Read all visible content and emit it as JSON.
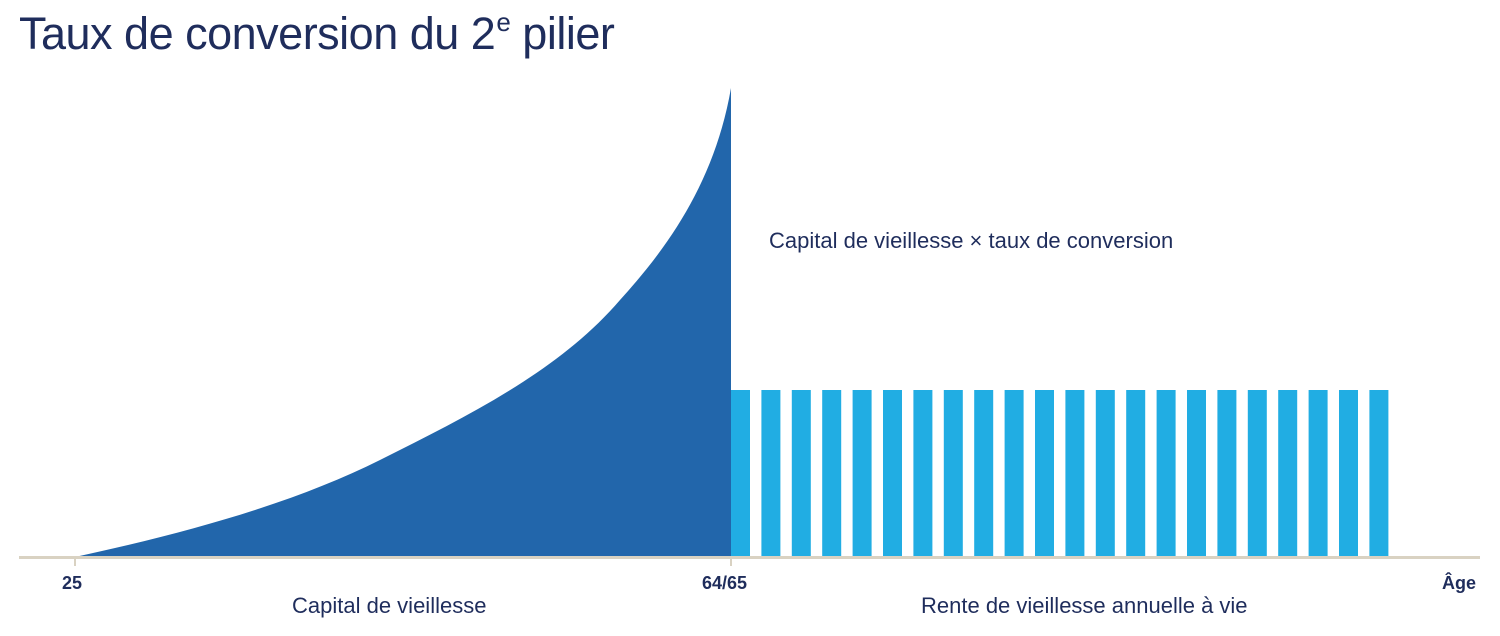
{
  "title": {
    "main": "Taux de conversion du 2",
    "superscript": "e",
    "suffix": " pilier"
  },
  "annotation": "Capital de vieillesse × taux de conversion",
  "axis": {
    "ticks": [
      "25",
      "64/65"
    ],
    "end_label": "Âge"
  },
  "captions": {
    "left": "Capital de vieillesse",
    "right": "Rente de vieillesse annuelle à vie"
  },
  "colors": {
    "capital": "#2266ab",
    "annuity": "#21ade3",
    "axis": "#d9d2c2",
    "text": "#1f2d5c"
  },
  "chart_data": {
    "type": "area",
    "title": "Taux de conversion du 2e pilier",
    "xlabel": "Âge",
    "ylabel": "",
    "x_ticks": [
      "25",
      "64/65"
    ],
    "annotations": [
      "Capital de vieillesse × taux de conversion"
    ],
    "grid": false,
    "legend": null,
    "series": [
      {
        "name": "Capital de vieillesse",
        "type": "area",
        "x": [
          25,
          30,
          35,
          40,
          45,
          50,
          55,
          58,
          60,
          62,
          63,
          64,
          64.5,
          65
        ],
        "values": [
          0,
          4,
          9,
          15,
          22,
          31,
          44,
          55,
          62,
          72,
          78,
          86,
          92,
          100
        ]
      },
      {
        "name": "Rente de vieillesse annuelle à vie",
        "type": "bar",
        "count": 22,
        "value_each": 35.6
      }
    ],
    "ylim": [
      0,
      100
    ],
    "notes": "Schematic: capital accumulates exponentially from age 25 to 64/65, then converts into constant annual pension bars (22 shown)."
  }
}
